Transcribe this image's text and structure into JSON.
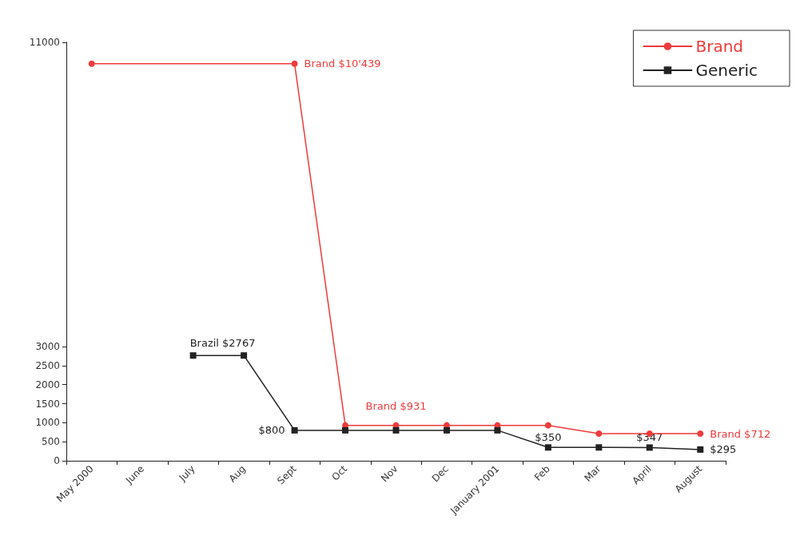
{
  "chart_data": {
    "type": "line",
    "categories": [
      "May 2000",
      "June",
      "July",
      "Aug",
      "Sept",
      "Oct",
      "Nov",
      "Dec",
      "January 2001",
      "Feb",
      "Mar",
      "April",
      "August"
    ],
    "series": [
      {
        "name": "Brand",
        "color": "#ee3b3b",
        "marker": "circle",
        "values": [
          10439,
          null,
          null,
          null,
          10439,
          931,
          931,
          931,
          931,
          931,
          712,
          712,
          712
        ]
      },
      {
        "name": "Generic",
        "color": "#222222",
        "marker": "square",
        "values": [
          null,
          null,
          2767,
          2767,
          800,
          800,
          800,
          800,
          800,
          350,
          350,
          347,
          295
        ]
      }
    ],
    "ylim": [
      0,
      11000
    ],
    "yticks": [
      0,
      500,
      1000,
      1500,
      2000,
      2500,
      3000,
      11000
    ],
    "annotations": [
      {
        "text": "Brand $10'439",
        "x": "Sept",
        "y": 10439
      },
      {
        "text": "Brazil $2767",
        "x": "July",
        "y": 2767
      },
      {
        "text": "$800",
        "x": "Sept",
        "y": 800
      },
      {
        "text": "Brand $931",
        "x": "Nov",
        "y": 931
      },
      {
        "text": "$350",
        "x": "Feb",
        "y": 350
      },
      {
        "text": "$347",
        "x": "April",
        "y": 347
      },
      {
        "text": "Brand $712",
        "x": "August",
        "y": 712
      },
      {
        "text": "$295",
        "x": "August",
        "y": 295
      }
    ],
    "grid": false,
    "legend": "top right",
    "line_style": "solid"
  }
}
